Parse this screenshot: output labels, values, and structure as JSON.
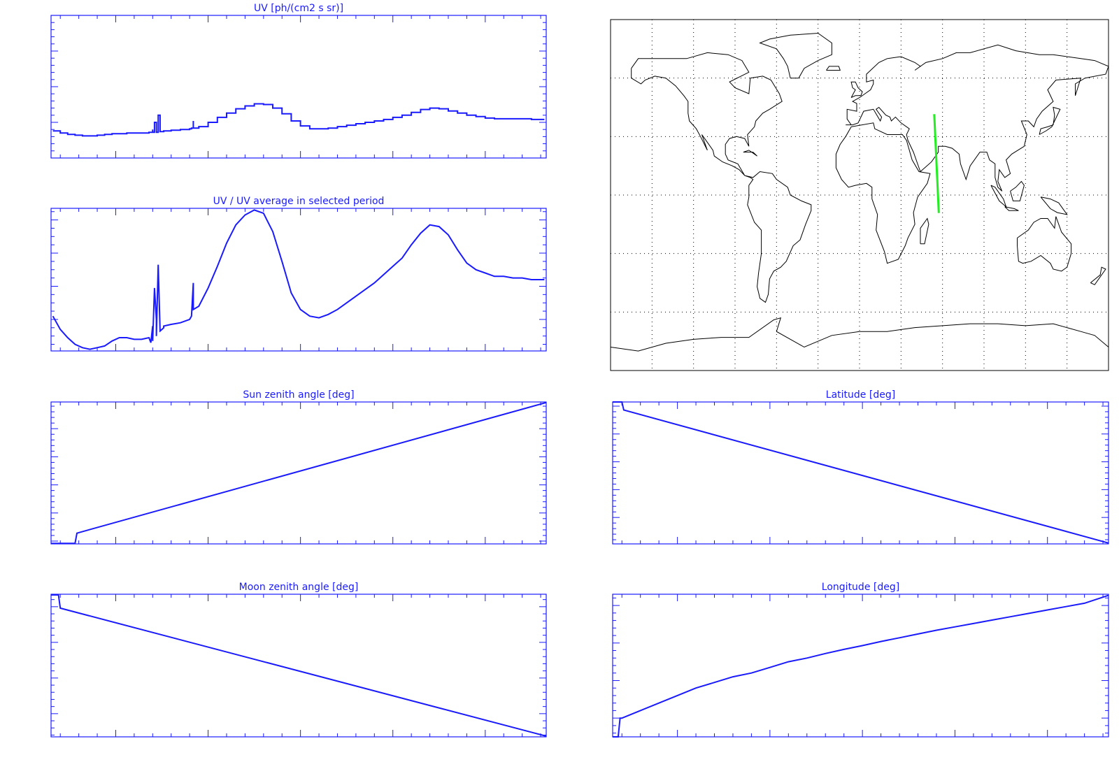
{
  "page": {
    "colors": {
      "plot": "#1a1aff",
      "map": "#000000",
      "track": "#22ee22",
      "background": "#ffffff"
    }
  },
  "chart_data": [
    {
      "id": "uv",
      "type": "line",
      "title": "UV [ph/(cm2 s sr)]",
      "xlim": [
        6.5992465,
        6.5992733
      ],
      "ylim": [
        0,
        2000000000.0
      ],
      "xticks": [
        "6.599250",
        "6.599255",
        "6.599260",
        "6.599265",
        "6.599270"
      ],
      "yticks": [
        "0",
        "5.0×10⁸",
        "1.0×10⁹",
        "1.5×10⁹",
        "2.0×10⁹"
      ],
      "series": [
        {
          "x": [
            6.5992466,
            6.599247,
            6.5992474,
            6.5992478,
            6.5992482,
            6.5992486,
            6.599249,
            6.5992494,
            6.5992498,
            6.5992502,
            6.5992506,
            6.599251,
            6.5992514,
            6.5992518,
            6.5992519,
            6.599252,
            6.599252,
            6.5992521,
            6.5992522,
            6.5992522,
            6.5992523,
            6.5992524,
            6.5992525,
            6.5992526,
            6.5992526,
            6.599253,
            6.5992535,
            6.599254,
            6.5992541,
            6.5992542,
            6.5992542,
            6.5992545,
            6.599255,
            6.5992555,
            6.599256,
            6.5992565,
            6.599257,
            6.5992575,
            6.599258,
            6.5992585,
            6.599259,
            6.5992595,
            6.59926,
            6.5992605,
            6.599261,
            6.5992615,
            6.599262,
            6.5992625,
            6.599263,
            6.5992635,
            6.599264,
            6.5992645,
            6.599265,
            6.5992655,
            6.599266,
            6.5992665,
            6.599267,
            6.5992675,
            6.599268,
            6.5992685,
            6.599269,
            6.5992695,
            6.59927,
            6.5992705,
            6.599271,
            6.5992715,
            6.599272,
            6.5992725,
            6.5992732
          ],
          "y": [
            380000000.0,
            350000000.0,
            330000000.0,
            320000000.0,
            310000000.0,
            310000000.0,
            320000000.0,
            330000000.0,
            340000000.0,
            340000000.0,
            350000000.0,
            350000000.0,
            350000000.0,
            360000000.0,
            360000000.0,
            400000000.0,
            360000000.0,
            500000000.0,
            430000000.0,
            360000000.0,
            600000000.0,
            370000000.0,
            370000000.0,
            380000000.0,
            380000000.0,
            390000000.0,
            400000000.0,
            410000000.0,
            420000000.0,
            520000000.0,
            420000000.0,
            440000000.0,
            500000000.0,
            570000000.0,
            630000000.0,
            690000000.0,
            730000000.0,
            760000000.0,
            750000000.0,
            700000000.0,
            620000000.0,
            520000000.0,
            450000000.0,
            410000000.0,
            410000000.0,
            420000000.0,
            440000000.0,
            460000000.0,
            480000000.0,
            500000000.0,
            520000000.0,
            540000000.0,
            570000000.0,
            600000000.0,
            640000000.0,
            680000000.0,
            700000000.0,
            690000000.0,
            660000000.0,
            630000000.0,
            600000000.0,
            580000000.0,
            560000000.0,
            550000000.0,
            550000000.0,
            550000000.0,
            550000000.0,
            540000000.0,
            540000000.0
          ]
        }
      ]
    },
    {
      "id": "uvratio",
      "type": "line",
      "title": "UV / UV average in selected period",
      "xlim": [
        6.5992465,
        6.5992733
      ],
      "ylim": [
        0.61,
        1.47
      ],
      "xticks": [
        "6.599250",
        "6.599255",
        "6.599260",
        "6.599265",
        "6.599270"
      ],
      "yticks": [
        "0.8",
        "1.0",
        "1.2",
        "1.4"
      ],
      "series": [
        {
          "x": [
            6.5992466,
            6.599247,
            6.5992474,
            6.5992478,
            6.5992482,
            6.5992486,
            6.599249,
            6.5992494,
            6.5992498,
            6.5992502,
            6.5992506,
            6.599251,
            6.5992514,
            6.5992518,
            6.5992519,
            6.599252,
            6.599252,
            6.5992521,
            6.5992522,
            6.5992522,
            6.5992523,
            6.5992524,
            6.5992525,
            6.5992526,
            6.5992526,
            6.599253,
            6.5992535,
            6.599254,
            6.5992541,
            6.5992542,
            6.5992542,
            6.5992545,
            6.599255,
            6.5992555,
            6.599256,
            6.5992565,
            6.599257,
            6.5992575,
            6.599258,
            6.5992585,
            6.599259,
            6.5992595,
            6.59926,
            6.5992605,
            6.599261,
            6.5992615,
            6.599262,
            6.5992625,
            6.599263,
            6.5992635,
            6.599264,
            6.5992645,
            6.599265,
            6.5992655,
            6.599266,
            6.5992665,
            6.599267,
            6.5992675,
            6.599268,
            6.5992685,
            6.599269,
            6.5992695,
            6.59927,
            6.5992705,
            6.599271,
            6.5992715,
            6.599272,
            6.5992725,
            6.5992732
          ],
          "y": [
            0.82,
            0.74,
            0.69,
            0.65,
            0.63,
            0.62,
            0.63,
            0.64,
            0.67,
            0.69,
            0.69,
            0.68,
            0.68,
            0.69,
            0.66,
            0.76,
            0.67,
            0.99,
            0.8,
            0.7,
            1.13,
            0.73,
            0.74,
            0.75,
            0.76,
            0.77,
            0.78,
            0.8,
            0.82,
            1.02,
            0.86,
            0.88,
            0.99,
            1.12,
            1.26,
            1.37,
            1.43,
            1.46,
            1.44,
            1.33,
            1.15,
            0.96,
            0.86,
            0.82,
            0.81,
            0.83,
            0.86,
            0.9,
            0.94,
            0.98,
            1.02,
            1.07,
            1.12,
            1.17,
            1.25,
            1.32,
            1.37,
            1.36,
            1.31,
            1.22,
            1.14,
            1.1,
            1.08,
            1.06,
            1.06,
            1.05,
            1.05,
            1.04,
            1.04
          ]
        }
      ]
    },
    {
      "id": "sunzen",
      "type": "line",
      "title": "Sun zenith angle [deg]",
      "xlim": [
        6.5992465,
        6.5992733
      ],
      "ylim": [
        119,
        169.5
      ],
      "xticks": [
        "6.599250",
        "6.599255",
        "6.599260",
        "6.599265",
        "6.599270"
      ],
      "yticks": [
        "120",
        "130",
        "140",
        "150",
        "160"
      ],
      "series": [
        {
          "x": [
            6.5992465,
            6.5992478,
            6.5992479,
            6.599248,
            6.5992733
          ],
          "y": [
            119.2,
            119.2,
            122.8,
            123.0,
            169.3
          ]
        }
      ]
    },
    {
      "id": "lat",
      "type": "line",
      "title": "Latitude [deg]",
      "xlim": [
        6.5992465,
        6.5992733
      ],
      "ylim": [
        -9.5,
        41.5
      ],
      "xticks": [
        "6.599250",
        "6.599255",
        "6.599260",
        "6.599265",
        "6.599270"
      ],
      "yticks": [
        "0",
        "10",
        "20",
        "30",
        "40"
      ],
      "series": [
        {
          "x": [
            6.5992465,
            6.599247,
            6.5992471,
            6.5992733
          ],
          "y": [
            41.5,
            41.5,
            38.6,
            -9.2
          ]
        }
      ]
    },
    {
      "id": "moonzen",
      "type": "line",
      "title": "Moon zenith angle [deg]",
      "xlim": [
        6.5992465,
        6.5992733
      ],
      "ylim": [
        33.5,
        73.5
      ],
      "xticks": [
        "6.599250",
        "6.599255",
        "6.599260",
        "6.599265",
        "6.599270"
      ],
      "yticks": [
        "40",
        "50",
        "60",
        "70"
      ],
      "series": [
        {
          "x": [
            6.5992465,
            6.5992469,
            6.599247,
            6.5992733
          ],
          "y": [
            73.3,
            73.3,
            69.6,
            33.7
          ]
        }
      ]
    },
    {
      "id": "lon",
      "type": "line",
      "title": "Longitude [deg]",
      "xlim": [
        6.5992465,
        6.5992733
      ],
      "ylim": [
        53.5,
        57.3
      ],
      "xticks": [
        "6.599250",
        "6.599255",
        "6.599260",
        "6.599265",
        "6.599270"
      ],
      "yticks": [
        "54",
        "55",
        "56",
        "57"
      ],
      "series": [
        {
          "x": [
            6.5992465,
            6.5992468,
            6.5992469,
            6.599247,
            6.599248,
            6.599249,
            6.59925,
            6.599251,
            6.599252,
            6.599253,
            6.599254,
            6.599255,
            6.599256,
            6.599257,
            6.599258,
            6.599259,
            6.59926,
            6.599261,
            6.599262,
            6.599263,
            6.599264,
            6.599265,
            6.599266,
            6.599267,
            6.599268,
            6.599269,
            6.59927,
            6.599271,
            6.599272,
            6.5992733
          ],
          "y": [
            53.5,
            53.5,
            54.0,
            54.0,
            54.2,
            54.4,
            54.6,
            54.8,
            54.95,
            55.1,
            55.2,
            55.35,
            55.5,
            55.6,
            55.72,
            55.83,
            55.93,
            56.04,
            56.14,
            56.24,
            56.34,
            56.43,
            56.52,
            56.61,
            56.7,
            56.79,
            56.88,
            56.97,
            57.06,
            57.27
          ]
        }
      ]
    },
    {
      "id": "map",
      "type": "map",
      "xlim": [
        -180,
        180
      ],
      "ylim": [
        -90,
        90
      ],
      "xticks": [
        "-150",
        "-120",
        "-90",
        "-60",
        "-30",
        "0",
        "30",
        "60",
        "90",
        "120",
        "150",
        "180"
      ],
      "grid": true,
      "track": {
        "lon": [
          54.0,
          57.3
        ],
        "lat": [
          41.5,
          -9.2
        ]
      }
    }
  ]
}
